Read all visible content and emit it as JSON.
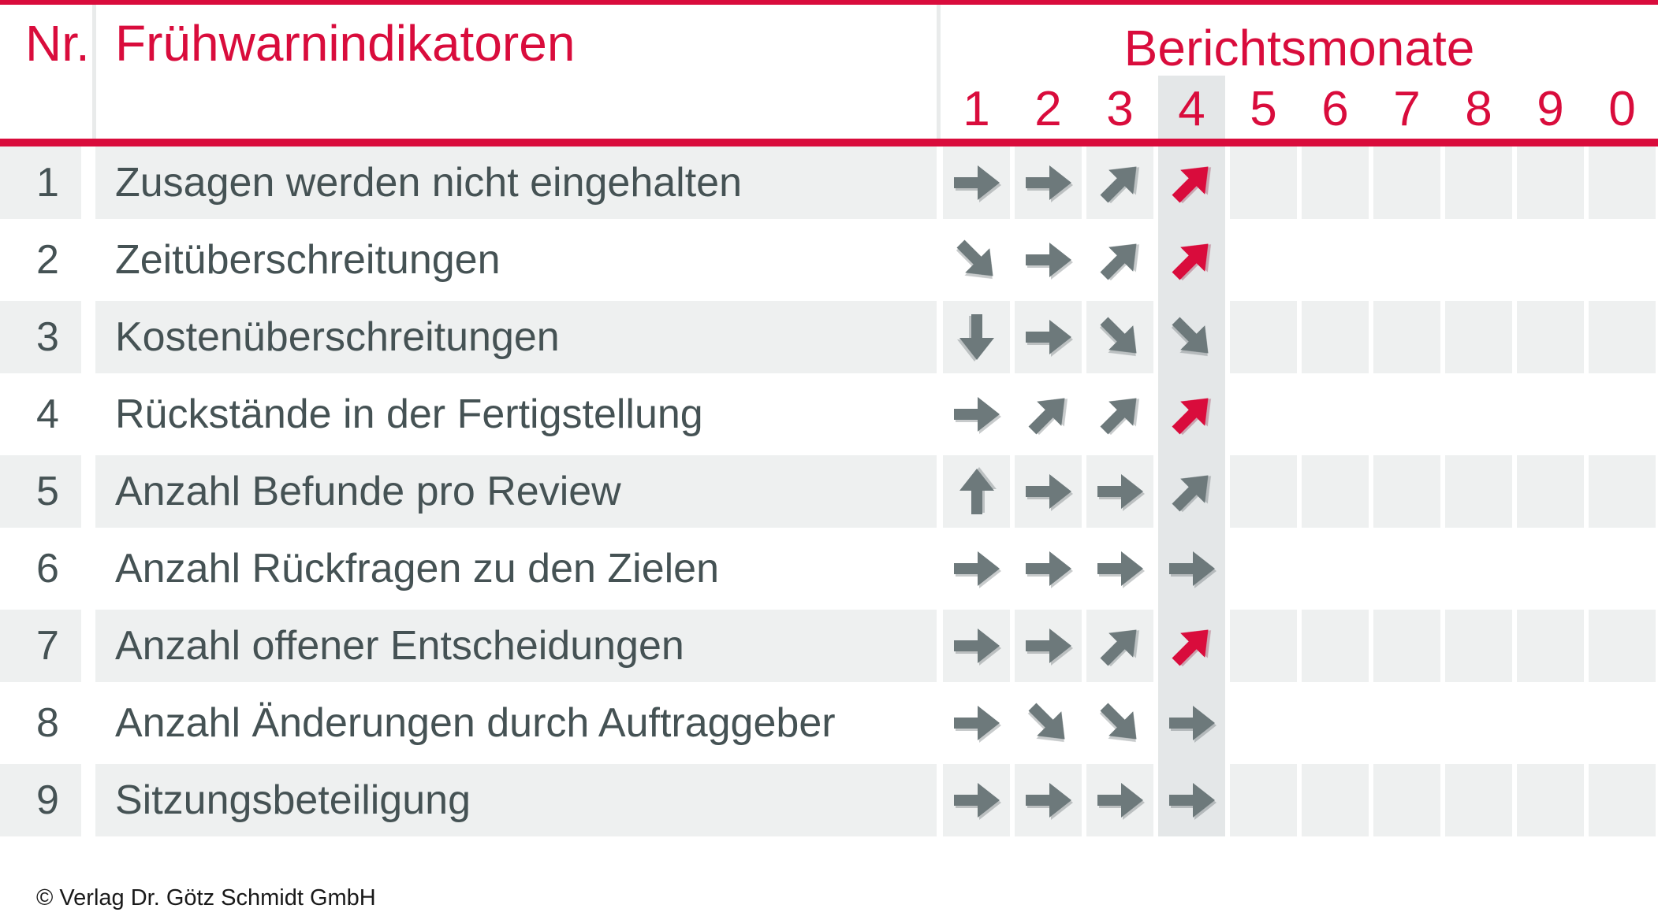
{
  "header": {
    "nr_label": "Nr.",
    "indicators_label": "Frühwarnindikatoren",
    "months_label": "Berichtsmonate",
    "month_numbers": [
      "1",
      "2",
      "3",
      "4",
      "5",
      "6",
      "7",
      "8",
      "9",
      "0"
    ],
    "highlighted_month": "4"
  },
  "rows": [
    {
      "nr": "1",
      "label": "Zusagen werden nicht eingehalten",
      "trends": [
        {
          "month": "1",
          "dir": "right",
          "tone": "gray"
        },
        {
          "month": "2",
          "dir": "right",
          "tone": "gray"
        },
        {
          "month": "3",
          "dir": "up-right",
          "tone": "gray"
        },
        {
          "month": "4",
          "dir": "up-right",
          "tone": "red"
        }
      ]
    },
    {
      "nr": "2",
      "label": "Zeitüberschreitungen",
      "trends": [
        {
          "month": "1",
          "dir": "down-right",
          "tone": "gray"
        },
        {
          "month": "2",
          "dir": "right",
          "tone": "gray"
        },
        {
          "month": "3",
          "dir": "up-right",
          "tone": "gray"
        },
        {
          "month": "4",
          "dir": "up-right",
          "tone": "red"
        }
      ]
    },
    {
      "nr": "3",
      "label": "Kostenüberschreitungen",
      "trends": [
        {
          "month": "1",
          "dir": "down",
          "tone": "gray"
        },
        {
          "month": "2",
          "dir": "right",
          "tone": "gray"
        },
        {
          "month": "3",
          "dir": "down-right",
          "tone": "gray"
        },
        {
          "month": "4",
          "dir": "down-right",
          "tone": "gray"
        }
      ]
    },
    {
      "nr": "4",
      "label": "Rückstände in der Fertigstellung",
      "trends": [
        {
          "month": "1",
          "dir": "right",
          "tone": "gray"
        },
        {
          "month": "2",
          "dir": "up-right",
          "tone": "gray"
        },
        {
          "month": "3",
          "dir": "up-right",
          "tone": "gray"
        },
        {
          "month": "4",
          "dir": "up-right",
          "tone": "red"
        }
      ]
    },
    {
      "nr": "5",
      "label": "Anzahl Befunde pro Review",
      "trends": [
        {
          "month": "1",
          "dir": "up",
          "tone": "gray"
        },
        {
          "month": "2",
          "dir": "right",
          "tone": "gray"
        },
        {
          "month": "3",
          "dir": "right",
          "tone": "gray"
        },
        {
          "month": "4",
          "dir": "up-right",
          "tone": "gray"
        }
      ]
    },
    {
      "nr": "6",
      "label": "Anzahl Rückfragen zu den Zielen",
      "trends": [
        {
          "month": "1",
          "dir": "right",
          "tone": "gray"
        },
        {
          "month": "2",
          "dir": "right",
          "tone": "gray"
        },
        {
          "month": "3",
          "dir": "right",
          "tone": "gray"
        },
        {
          "month": "4",
          "dir": "right",
          "tone": "gray"
        }
      ]
    },
    {
      "nr": "7",
      "label": "Anzahl offener Entscheidungen",
      "trends": [
        {
          "month": "1",
          "dir": "right",
          "tone": "gray"
        },
        {
          "month": "2",
          "dir": "right",
          "tone": "gray"
        },
        {
          "month": "3",
          "dir": "up-right",
          "tone": "gray"
        },
        {
          "month": "4",
          "dir": "up-right",
          "tone": "red"
        }
      ]
    },
    {
      "nr": "8",
      "label": "Anzahl Änderungen durch Auftraggeber",
      "trends": [
        {
          "month": "1",
          "dir": "right",
          "tone": "gray"
        },
        {
          "month": "2",
          "dir": "down-right",
          "tone": "gray"
        },
        {
          "month": "3",
          "dir": "down-right",
          "tone": "gray"
        },
        {
          "month": "4",
          "dir": "right",
          "tone": "gray"
        }
      ]
    },
    {
      "nr": "9",
      "label": "Sitzungsbeteiligung",
      "trends": [
        {
          "month": "1",
          "dir": "right",
          "tone": "gray"
        },
        {
          "month": "2",
          "dir": "right",
          "tone": "gray"
        },
        {
          "month": "3",
          "dir": "right",
          "tone": "gray"
        },
        {
          "month": "4",
          "dir": "right",
          "tone": "gray"
        }
      ]
    }
  ],
  "footer": {
    "copyright": "© Verlag Dr. Götz Schmidt GmbH"
  },
  "colors": {
    "accent_red": "#d90c3c",
    "arrow_gray": "#6d797b",
    "row_band_gray": "#eef0f0",
    "highlight_column_gray": "#e4e7e8",
    "text_dark": "#455254"
  }
}
